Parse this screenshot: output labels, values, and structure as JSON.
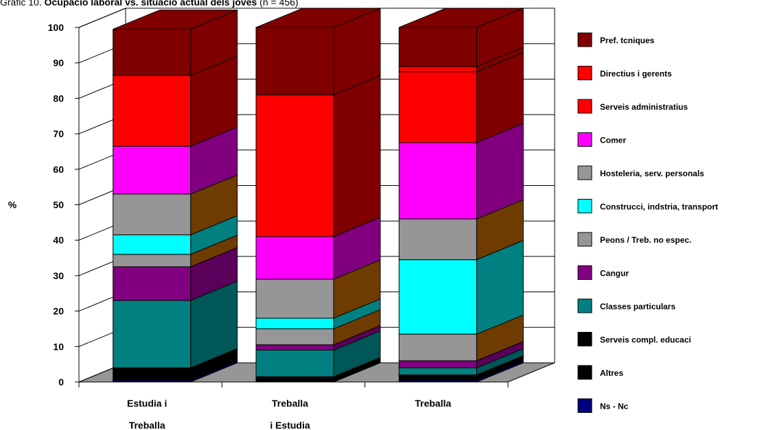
{
  "title": {
    "prefix": "Gràfic 10.",
    "bold": "Ocupació laboral vs. situació actual dels joves",
    "suffix": "(n = 456)"
  },
  "chart_data": {
    "type": "bar",
    "stacked": true,
    "three_d": true,
    "ylabel": "%",
    "ylim": [
      0,
      100
    ],
    "yticks": [
      "0",
      "10",
      "20",
      "30",
      "40",
      "50",
      "60",
      "70",
      "80",
      "90",
      "100"
    ],
    "grid": true,
    "legend_position": "right",
    "categories": [
      {
        "line1": "Estudia i",
        "line2": "Treballa"
      },
      {
        "line1": "Treballa",
        "line2": "i Estudia"
      },
      {
        "line1": "Treballa",
        "line2": ""
      }
    ],
    "series": [
      {
        "name": "Ns - Nc",
        "color": "#000080",
        "side": "#000050",
        "values": [
          0.5,
          0,
          0.5
        ]
      },
      {
        "name": "Altres",
        "color": "#000000",
        "side": "#000000",
        "values": [
          0.5,
          1.5,
          1.5
        ]
      },
      {
        "name": "Serveis compl. educaci",
        "color": "#000000",
        "side": "#000000",
        "values": [
          3,
          0,
          0
        ]
      },
      {
        "name": "Classes particulars",
        "color": "#008080",
        "side": "#005757",
        "values": [
          19,
          7.5,
          2
        ]
      },
      {
        "name": "Cangur",
        "color": "#800080",
        "side": "#5a005a",
        "values": [
          9.5,
          1.5,
          2
        ]
      },
      {
        "name": "Peons / Treb. no espec.",
        "color": "#969696",
        "side": "#6e3c00",
        "values": [
          3.5,
          4.5,
          7.5
        ]
      },
      {
        "name": "Construcci, indstria, transport",
        "color": "#00ffff",
        "side": "#008080",
        "values": [
          5.5,
          3,
          21
        ]
      },
      {
        "name": "Hosteleria, serv. personals",
        "color": "#969696",
        "side": "#6e3c00",
        "values": [
          11.5,
          11,
          11.5
        ]
      },
      {
        "name": "Comer",
        "color": "#ff00ff",
        "side": "#800080",
        "values": [
          13.5,
          12,
          21.5
        ]
      },
      {
        "name": "Serveis administratius",
        "color": "#ff0000",
        "side": "#800000",
        "values": [
          20,
          40,
          20
        ]
      },
      {
        "name": "Directius i gerents",
        "color": "#ff0000",
        "side": "#800000",
        "values": [
          0,
          0,
          1.5
        ]
      },
      {
        "name": "Pref. tcniques",
        "color": "#800000",
        "side": "#800000",
        "values": [
          13,
          19,
          11
        ]
      }
    ]
  }
}
